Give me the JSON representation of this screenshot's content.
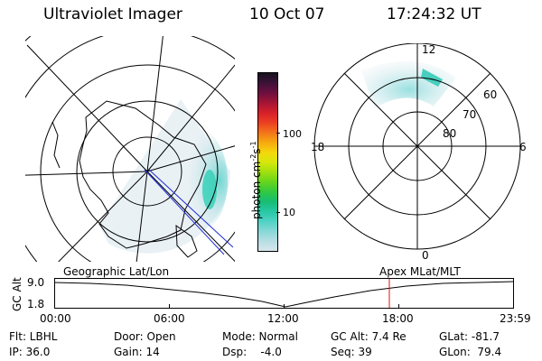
{
  "header": {
    "instrument": "Ultraviolet Imager",
    "date": "10 Oct 07",
    "time": "17:24:32 UT"
  },
  "left_panel": {
    "label": "Geographic Lat/Lon"
  },
  "right_panel": {
    "label": "Apex MLat/MLT",
    "mlt_labels": [
      "12",
      "18",
      "6",
      "0"
    ],
    "lat_labels": [
      "60",
      "70",
      "80"
    ]
  },
  "colorbar": {
    "unit": "photon cm",
    "unit_exp1": "-2",
    "unit_mid": "s",
    "unit_exp2": "-1",
    "ticks": [
      "100",
      "10"
    ],
    "colors": [
      "#d8e6ec",
      "#b7dee3",
      "#86d8d6",
      "#4fd2c4",
      "#27c8a4",
      "#17bd74",
      "#32c940",
      "#67d51c",
      "#a3e00f",
      "#d7e80b",
      "#f5d60c",
      "#f6a70f",
      "#f4731a",
      "#eb3e22",
      "#d6202a",
      "#a41436",
      "#6d0f3f",
      "#3d1238",
      "#16121f"
    ]
  },
  "gc_alt_plot": {
    "ylabel": "GC Alt",
    "y_ticks": [
      "9.0",
      "1.8"
    ],
    "x_ticks": [
      "00:00",
      "06:00",
      "12:00",
      "18:00",
      "23:59"
    ],
    "current_time": "17:24:32"
  },
  "info": {
    "filter": "Flt: LBHL",
    "door": "Door: Open",
    "mode": "Mode: Normal",
    "gc_alt": "GC Alt: 7.4 Re",
    "glat": "GLat: -81.7",
    "ip": "IP: 36.0",
    "gain": "Gain: 14",
    "dsp": "Dsp:    -4.0",
    "seq": "Seq: 39",
    "glon": "GLon:  79.4"
  }
}
